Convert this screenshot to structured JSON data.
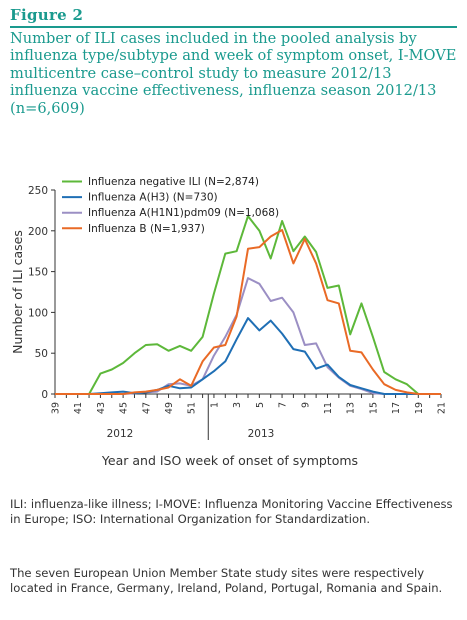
{
  "figure": {
    "label": "Figure 2",
    "title": "Number of ILI cases included in the pooled analysis by influenza type/subtype and week of symptom onset, I-MOVE multicentre case–control study to measure 2012/13 influenza vaccine effectiveness, influenza season 2012/13 (n=6,609)"
  },
  "footnotes": [
    "ILI: influenza-like illness; I-MOVE: Influenza Monitoring Vaccine Effectiveness in Europe; ISO: International Organization for Standardization.",
    "The seven European Union Member State study sites were respectively located in France, Germany, Ireland, Poland, Portugal, Romania and Spain."
  ],
  "chart_data": {
    "type": "line",
    "xlabel": "Year and ISO week of onset of symptoms",
    "ylabel": "Number of ILI cases",
    "ylim": [
      0,
      250
    ],
    "yticks": [
      0,
      50,
      100,
      150,
      200,
      250
    ],
    "year_labels": [
      "2012",
      "2013"
    ],
    "x": [
      "39",
      "40",
      "41",
      "42",
      "43",
      "44",
      "45",
      "46",
      "47",
      "48",
      "49",
      "50",
      "51",
      "52",
      "1",
      "2",
      "3",
      "4",
      "5",
      "6",
      "7",
      "8",
      "9",
      "10",
      "11",
      "12",
      "13",
      "14",
      "15",
      "16",
      "17",
      "18",
      "19",
      "20",
      "21"
    ],
    "x_tick_labels": [
      "39",
      "41",
      "43",
      "45",
      "47",
      "49",
      "51",
      "1",
      "3",
      "5",
      "7",
      "9",
      "11",
      "13",
      "15",
      "17",
      "19",
      "21"
    ],
    "legend_position": "top-left",
    "series": [
      {
        "name": "Influenza negative ILI (N=2,874)",
        "color": "#5db83a",
        "values": [
          0,
          0,
          0,
          0,
          25,
          30,
          38,
          50,
          60,
          61,
          53,
          59,
          53,
          70,
          123,
          172,
          175,
          218,
          200,
          166,
          212,
          175,
          193,
          174,
          130,
          133,
          73,
          111,
          70,
          27,
          18,
          12,
          0,
          0,
          0
        ]
      },
      {
        "name": "Influenza A(H3) (N=730)",
        "color": "#1f6fb5",
        "values": [
          0,
          0,
          0,
          0,
          1,
          2,
          3,
          1,
          2,
          5,
          10,
          7,
          8,
          18,
          28,
          40,
          67,
          93,
          78,
          90,
          74,
          55,
          52,
          31,
          36,
          21,
          11,
          7,
          3,
          0,
          0,
          0,
          0,
          0,
          0
        ]
      },
      {
        "name": "Influenza A(H1N1)pdm09 (N=1,068)",
        "color": "#9b8fc4",
        "values": [
          0,
          0,
          0,
          0,
          0,
          0,
          0,
          1,
          2,
          3,
          12,
          13,
          10,
          18,
          47,
          70,
          97,
          142,
          135,
          114,
          118,
          100,
          60,
          62,
          33,
          20,
          10,
          6,
          1,
          0,
          0,
          0,
          0,
          0,
          0
        ]
      },
      {
        "name": "Influenza B (N=1,937)",
        "color": "#e96a26",
        "values": [
          0,
          0,
          0,
          0,
          0,
          0,
          0,
          2,
          3,
          5,
          8,
          18,
          10,
          40,
          57,
          60,
          95,
          178,
          180,
          193,
          201,
          160,
          190,
          160,
          115,
          111,
          53,
          51,
          30,
          12,
          5,
          2,
          0,
          0,
          0
        ]
      }
    ]
  }
}
